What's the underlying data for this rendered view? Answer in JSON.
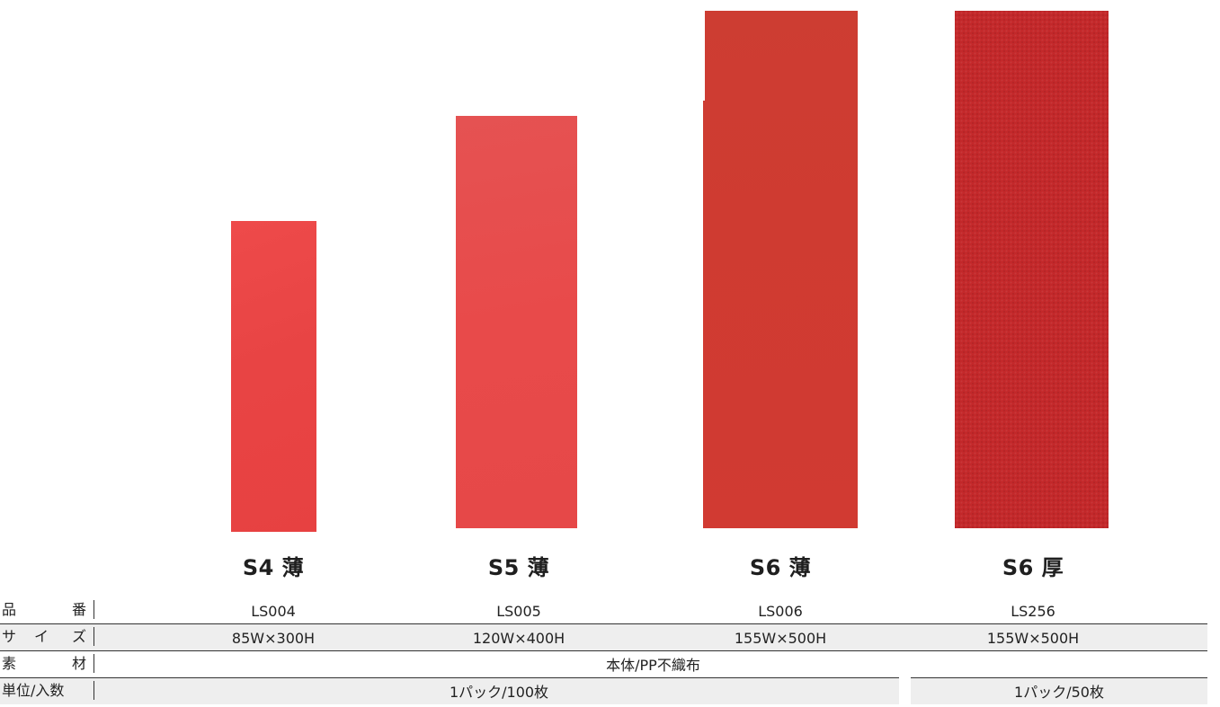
{
  "products": [
    {
      "name": "S4 薄",
      "code": "LS004",
      "size": "85W×300H"
    },
    {
      "name": "S5 薄",
      "code": "LS005",
      "size": "120W×400H"
    },
    {
      "name": "S6 薄",
      "code": "LS006",
      "size": "155W×500H"
    },
    {
      "name": "S6 厚",
      "code": "LS256",
      "size": "155W×500H"
    }
  ],
  "spec_labels": {
    "code": [
      "品",
      "番"
    ],
    "size": [
      "サ",
      "イ",
      "ズ"
    ],
    "material": [
      "素",
      "材"
    ],
    "unit": "単位/入数"
  },
  "material_value": "本体/PP不織布",
  "unit_values": {
    "thin": "1パック/100枚",
    "thick": "1パック/50枚"
  },
  "colors": {
    "s4_thin": "#ec4646",
    "s5_thin": "#e84a4a",
    "s6_thin": "#cf3b31",
    "s6_thick": "#c3282a"
  }
}
